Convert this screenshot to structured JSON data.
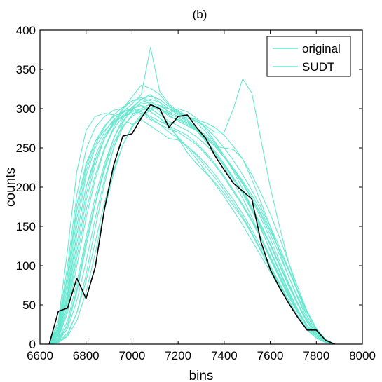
{
  "chart_data": {
    "type": "line",
    "title": "(b)",
    "xlabel": "bins",
    "ylabel": "counts",
    "xlim": [
      6600,
      8000
    ],
    "ylim": [
      0,
      400
    ],
    "x_ticks": [
      6600,
      6800,
      7000,
      7200,
      7400,
      7600,
      7800,
      8000
    ],
    "y_ticks": [
      0,
      50,
      100,
      150,
      200,
      250,
      300,
      350,
      400
    ],
    "grid": false,
    "legend_position": "top-right",
    "colors": {
      "original": "#66e8d0",
      "sudt": "#000000",
      "axes": "#000000"
    },
    "legend": [
      {
        "label": "original",
        "color": "#66e8d0"
      },
      {
        "label": "SUDT",
        "color": "#66e8d0"
      }
    ],
    "x": [
      6640,
      6680,
      6720,
      6760,
      6800,
      6840,
      6880,
      6920,
      6960,
      7000,
      7040,
      7080,
      7120,
      7160,
      7200,
      7240,
      7280,
      7320,
      7360,
      7400,
      7440,
      7480,
      7520,
      7560,
      7600,
      7640,
      7680,
      7720,
      7760,
      7800,
      7840,
      7880
    ],
    "series": [
      {
        "values": [
          0,
          42,
          46,
          84,
          58,
          98,
          172,
          228,
          265,
          268,
          288,
          305,
          300,
          276,
          290,
          292,
          276,
          262,
          240,
          222,
          205,
          195,
          185,
          130,
          95,
          72,
          52,
          34,
          18,
          18,
          5,
          0
        ]
      },
      {
        "values": [
          0,
          12,
          60,
          140,
          200,
          235,
          262,
          282,
          295,
          300,
          304,
          296,
          288,
          280,
          286,
          282,
          272,
          260,
          244,
          226,
          206,
          186,
          162,
          134,
          108,
          84,
          60,
          40,
          22,
          10,
          3,
          0
        ]
      },
      {
        "values": [
          0,
          5,
          25,
          70,
          130,
          180,
          225,
          262,
          288,
          302,
          312,
          318,
          308,
          294,
          300,
          296,
          288,
          274,
          258,
          240,
          220,
          198,
          174,
          148,
          118,
          92,
          66,
          44,
          24,
          10,
          2,
          0
        ]
      },
      {
        "values": [
          0,
          22,
          90,
          178,
          230,
          258,
          272,
          284,
          290,
          294,
          296,
          290,
          284,
          278,
          272,
          266,
          256,
          244,
          230,
          214,
          196,
          178,
          158,
          136,
          112,
          88,
          64,
          42,
          24,
          12,
          4,
          0
        ]
      },
      {
        "values": [
          0,
          2,
          12,
          40,
          88,
          148,
          204,
          250,
          282,
          300,
          312,
          316,
          312,
          302,
          298,
          290,
          282,
          270,
          256,
          240,
          222,
          204,
          184,
          160,
          134,
          106,
          78,
          52,
          30,
          14,
          4,
          0
        ]
      },
      {
        "values": [
          0,
          30,
          120,
          220,
          272,
          290,
          294,
          292,
          286,
          280,
          286,
          278,
          270,
          262,
          260,
          252,
          242,
          230,
          216,
          200,
          184,
          166,
          146,
          124,
          100,
          78,
          56,
          36,
          20,
          8,
          2,
          0
        ]
      },
      {
        "values": [
          0,
          8,
          45,
          110,
          170,
          215,
          250,
          276,
          300,
          315,
          330,
          326,
          318,
          304,
          294,
          284,
          272,
          258,
          244,
          228,
          210,
          192,
          172,
          150,
          126,
          100,
          74,
          50,
          28,
          12,
          3,
          0
        ]
      },
      {
        "values": [
          0,
          4,
          20,
          55,
          105,
          160,
          210,
          250,
          276,
          292,
          300,
          306,
          300,
          292,
          284,
          278,
          272,
          264,
          252,
          238,
          224,
          208,
          190,
          170,
          146,
          120,
          94,
          66,
          40,
          18,
          6,
          0
        ]
      },
      {
        "values": [
          0,
          16,
          72,
          150,
          214,
          250,
          270,
          286,
          296,
          306,
          318,
          378,
          322,
          306,
          296,
          286,
          274,
          260,
          246,
          230,
          212,
          192,
          170,
          146,
          120,
          94,
          68,
          44,
          24,
          10,
          2,
          0
        ]
      },
      {
        "values": [
          0,
          3,
          14,
          40,
          80,
          130,
          180,
          222,
          254,
          276,
          290,
          298,
          302,
          300,
          294,
          290,
          286,
          282,
          276,
          266,
          252,
          236,
          216,
          192,
          166,
          136,
          104,
          72,
          42,
          18,
          4,
          0
        ]
      },
      {
        "values": [
          0,
          26,
          100,
          190,
          248,
          276,
          290,
          298,
          300,
          298,
          294,
          286,
          280,
          270,
          262,
          252,
          240,
          226,
          212,
          196,
          180,
          162,
          142,
          120,
          98,
          76,
          54,
          34,
          18,
          8,
          2,
          0
        ]
      },
      {
        "values": [
          0,
          10,
          50,
          118,
          182,
          228,
          262,
          284,
          300,
          310,
          314,
          310,
          300,
          290,
          286,
          280,
          272,
          262,
          252,
          250,
          248,
          236,
          210,
          180,
          150,
          118,
          86,
          58,
          32,
          14,
          4,
          0
        ]
      },
      {
        "values": [
          0,
          6,
          30,
          78,
          136,
          188,
          230,
          262,
          284,
          298,
          308,
          312,
          308,
          300,
          292,
          288,
          284,
          278,
          270,
          270,
          300,
          338,
          320,
          260,
          200,
          150,
          104,
          66,
          36,
          16,
          4,
          0
        ]
      },
      {
        "values": [
          0,
          18,
          80,
          160,
          220,
          254,
          276,
          292,
          302,
          310,
          312,
          306,
          296,
          280,
          262,
          244,
          230,
          218,
          206,
          192,
          176,
          160,
          140,
          118,
          96,
          74,
          52,
          34,
          18,
          8,
          2,
          0
        ]
      },
      {
        "values": [
          0,
          2,
          10,
          30,
          66,
          116,
          170,
          218,
          254,
          278,
          292,
          300,
          304,
          300,
          296,
          290,
          284,
          276,
          264,
          250,
          234,
          216,
          196,
          174,
          150,
          124,
          96,
          68,
          42,
          20,
          6,
          0
        ]
      },
      {
        "values": [
          0,
          14,
          65,
          140,
          200,
          240,
          266,
          282,
          290,
          296,
          300,
          296,
          288,
          276,
          264,
          250,
          236,
          220,
          204,
          188,
          170,
          152,
          132,
          112,
          92,
          72,
          52,
          34,
          18,
          8,
          2,
          0
        ]
      },
      {
        "values": [
          0,
          4,
          24,
          66,
          124,
          178,
          222,
          256,
          278,
          290,
          298,
          302,
          300,
          294,
          288,
          282,
          274,
          264,
          252,
          238,
          222,
          204,
          186,
          166,
          144,
          120,
          94,
          68,
          42,
          20,
          6,
          0
        ]
      },
      {
        "values": [
          0,
          20,
          88,
          170,
          226,
          258,
          278,
          290,
          296,
          300,
          296,
          288,
          280,
          274,
          270,
          262,
          254,
          242,
          228,
          212,
          194,
          176,
          156,
          134,
          110,
          86,
          62,
          40,
          22,
          10,
          2,
          0
        ]
      },
      {
        "values": [
          0,
          8,
          40,
          100,
          160,
          210,
          248,
          274,
          290,
          300,
          306,
          308,
          304,
          296,
          290,
          284,
          276,
          266,
          254,
          240,
          224,
          206,
          186,
          164,
          140,
          114,
          86,
          60,
          36,
          16,
          4,
          0
        ]
      },
      {
        "values": [
          0,
          12,
          56,
          128,
          190,
          234,
          262,
          280,
          292,
          300,
          304,
          300,
          292,
          284,
          278,
          272,
          264,
          254,
          242,
          228,
          212,
          194,
          174,
          152,
          128,
          102,
          76,
          50,
          28,
          12,
          3,
          0
        ]
      }
    ]
  }
}
